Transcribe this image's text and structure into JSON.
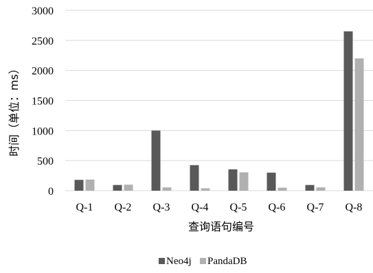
{
  "chart_data": {
    "type": "bar",
    "xlabel": "查询语句编号",
    "ylabel": "时间（单位：ms）",
    "categories": [
      "Q-1",
      "Q-2",
      "Q-3",
      "Q-4",
      "Q-5",
      "Q-6",
      "Q-7",
      "Q-8"
    ],
    "series": [
      {
        "name": "Neo4j",
        "color": "#595959",
        "values": [
          180,
          95,
          1000,
          425,
          355,
          300,
          95,
          2650
        ]
      },
      {
        "name": "PandaDB",
        "color": "#b0b0b0",
        "values": [
          185,
          100,
          55,
          40,
          305,
          50,
          55,
          2200
        ]
      }
    ],
    "ylim": [
      0,
      3000
    ],
    "yticks": [
      0,
      500,
      1000,
      1500,
      2000,
      2500,
      3000
    ],
    "grid": true,
    "legend_position": "bottom"
  }
}
